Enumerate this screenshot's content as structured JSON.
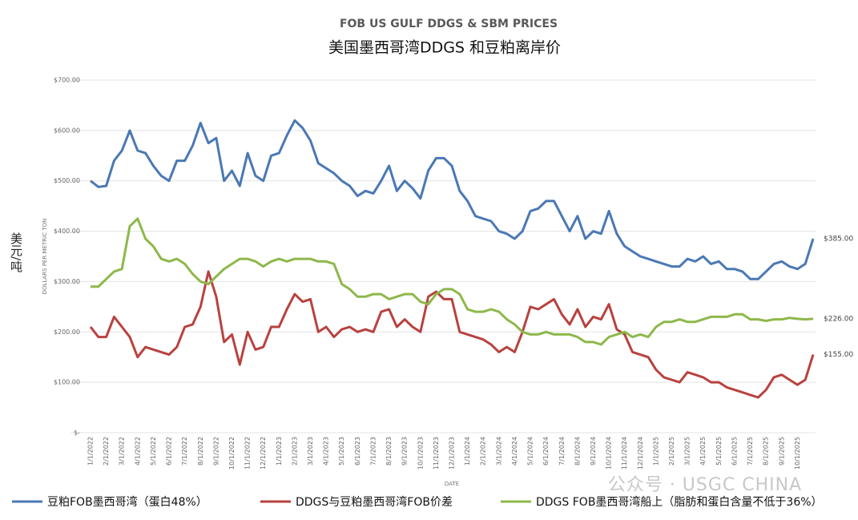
{
  "chart_data": {
    "type": "line",
    "title": "FOB US GULF DDGS & SBM PRICES",
    "subtitle": "美国墨西哥湾DDGS 和豆粕离岸价",
    "y_label": "DOLLARS PER METRIC TON",
    "x_label": "DATE",
    "unit_label": "美元/吨",
    "watermark": "公众号 · USGC CHINA",
    "grid": true,
    "ylim": [
      0,
      700
    ],
    "yticks": [
      {
        "value": 0,
        "label": "$-"
      },
      {
        "value": 100,
        "label": "$100.00"
      },
      {
        "value": 200,
        "label": "$200.00"
      },
      {
        "value": 300,
        "label": "$300.00"
      },
      {
        "value": 400,
        "label": "$400.00"
      },
      {
        "value": 500,
        "label": "$500.00"
      },
      {
        "value": 600,
        "label": "$600.00"
      },
      {
        "value": 700,
        "label": "$700.00"
      }
    ],
    "categories": [
      "1/1/2022",
      null,
      "2/1/2022",
      null,
      "3/1/2022",
      null,
      "4/1/2022",
      null,
      "5/1/2022",
      null,
      "6/1/2022",
      null,
      "7/1/2022",
      null,
      "8/1/2022",
      null,
      "9/1/2022",
      null,
      "10/1/2022",
      null,
      "11/1/2022",
      null,
      "12/1/2022",
      null,
      "1/1/2023",
      null,
      "2/1/2023",
      null,
      "3/1/2023",
      null,
      "4/1/2023",
      null,
      "5/1/2023",
      null,
      "6/1/2023",
      null,
      "7/1/2023",
      null,
      "8/1/2023",
      null,
      "9/1/2023",
      null,
      "10/1/2023",
      null,
      "11/1/2023",
      null,
      "12/1/2023",
      null,
      "1/1/2024",
      null,
      "2/1/2024",
      null,
      "3/1/2024",
      null,
      "4/1/2024",
      null,
      "5/1/2024",
      null,
      "6/1/2024",
      null,
      "7/1/2024",
      null,
      "8/1/2024",
      null,
      "9/1/2024",
      null,
      "10/1/2024",
      null,
      "11/1/2024",
      null,
      "12/1/2024",
      null,
      "1/1/2025",
      null,
      "2/1/2025",
      null,
      "3/1/2025",
      null,
      "4/1/2025",
      null,
      "5/1/2025",
      null,
      "6/1/2025",
      null,
      "7/1/2025",
      null,
      "8/1/2025",
      null,
      "9/1/2025",
      null,
      "10/1/2025",
      null,
      null
    ],
    "series": [
      {
        "name": "豆粕FOB墨西哥湾（蛋白48%）",
        "color": "#4a78b4",
        "values": [
          500,
          488,
          490,
          540,
          560,
          600,
          560,
          555,
          530,
          510,
          500,
          540,
          540,
          570,
          615,
          575,
          585,
          500,
          520,
          490,
          555,
          510,
          500,
          550,
          555,
          590,
          620,
          605,
          580,
          535,
          525,
          515,
          500,
          490,
          470,
          480,
          475,
          500,
          530,
          480,
          500,
          485,
          465,
          520,
          545,
          545,
          530,
          480,
          460,
          430,
          425,
          420,
          400,
          395,
          385,
          400,
          440,
          445,
          460,
          460,
          430,
          400,
          430,
          385,
          400,
          395,
          440,
          395,
          370,
          360,
          350,
          345,
          340,
          335,
          330,
          330,
          345,
          340,
          350,
          335,
          340,
          325,
          325,
          320,
          305,
          305,
          320,
          335,
          340,
          330,
          325,
          335,
          385
        ],
        "value_labels": [
          null,
          null,
          null,
          null,
          null,
          null,
          null,
          null,
          null,
          null,
          null,
          null,
          null,
          null,
          null,
          null,
          null,
          null,
          null,
          null,
          null,
          null,
          null,
          null,
          null,
          null,
          null,
          null,
          null,
          null,
          null,
          null,
          null,
          null,
          null,
          null,
          null,
          null,
          null,
          null,
          null,
          null,
          null,
          null,
          null,
          null,
          null,
          null,
          null,
          null,
          null,
          null,
          null,
          null,
          null,
          null,
          null,
          null,
          null,
          null,
          null,
          null,
          null,
          null,
          null,
          null,
          null,
          null,
          null,
          null,
          null,
          null,
          null,
          null,
          null,
          null,
          null,
          null,
          null,
          null,
          null,
          null,
          null,
          null,
          null,
          null,
          null,
          null,
          null,
          null,
          null,
          null,
          "$385.00"
        ]
      },
      {
        "name": "DDGS与豆粕墨西哥湾FOB价差",
        "color": "#b8423f",
        "values": [
          210,
          190,
          190,
          230,
          210,
          190,
          150,
          170,
          165,
          160,
          155,
          170,
          210,
          215,
          250,
          320,
          270,
          180,
          195,
          135,
          200,
          165,
          170,
          210,
          210,
          245,
          275,
          260,
          265,
          200,
          210,
          190,
          205,
          210,
          200,
          205,
          200,
          240,
          245,
          210,
          225,
          210,
          200,
          270,
          280,
          265,
          265,
          200,
          195,
          190,
          185,
          175,
          160,
          170,
          160,
          200,
          250,
          245,
          255,
          265,
          235,
          215,
          245,
          210,
          230,
          225,
          255,
          205,
          195,
          160,
          155,
          150,
          125,
          110,
          105,
          100,
          120,
          115,
          110,
          100,
          100,
          90,
          85,
          80,
          75,
          70,
          85,
          110,
          115,
          105,
          95,
          105,
          155
        ],
        "value_labels": [
          null,
          null,
          null,
          null,
          null,
          null,
          null,
          null,
          null,
          null,
          null,
          null,
          null,
          null,
          null,
          null,
          null,
          null,
          null,
          null,
          null,
          null,
          null,
          null,
          null,
          null,
          null,
          null,
          null,
          null,
          null,
          null,
          null,
          null,
          null,
          null,
          null,
          null,
          null,
          null,
          null,
          null,
          null,
          null,
          null,
          null,
          null,
          null,
          null,
          null,
          null,
          null,
          null,
          null,
          null,
          null,
          null,
          null,
          null,
          null,
          null,
          null,
          null,
          null,
          null,
          null,
          null,
          null,
          null,
          null,
          null,
          null,
          null,
          null,
          null,
          null,
          null,
          null,
          null,
          null,
          null,
          null,
          null,
          null,
          null,
          null,
          null,
          null,
          null,
          null,
          null,
          null,
          "$155.00"
        ]
      },
      {
        "name": "DDGS FOB墨西哥湾船上（脂肪和蛋白含量不低于36%）",
        "color": "#8db84a",
        "values": [
          290,
          290,
          305,
          320,
          325,
          410,
          425,
          385,
          370,
          345,
          340,
          345,
          335,
          315,
          300,
          295,
          310,
          325,
          335,
          345,
          345,
          340,
          330,
          340,
          345,
          340,
          345,
          345,
          345,
          340,
          340,
          335,
          295,
          285,
          270,
          270,
          275,
          275,
          265,
          270,
          275,
          275,
          260,
          255,
          275,
          285,
          285,
          275,
          245,
          240,
          240,
          245,
          240,
          225,
          215,
          200,
          195,
          195,
          200,
          195,
          195,
          195,
          190,
          180,
          180,
          175,
          190,
          195,
          200,
          190,
          195,
          190,
          210,
          220,
          220,
          225,
          220,
          220,
          225,
          230,
          230,
          230,
          235,
          235,
          225,
          225,
          222,
          225,
          225,
          228,
          226,
          225,
          226
        ],
        "value_labels": [
          null,
          null,
          null,
          null,
          null,
          null,
          null,
          null,
          null,
          null,
          null,
          null,
          null,
          null,
          null,
          null,
          null,
          null,
          null,
          null,
          null,
          null,
          null,
          null,
          null,
          null,
          null,
          null,
          null,
          null,
          null,
          null,
          null,
          null,
          null,
          null,
          null,
          null,
          null,
          null,
          null,
          null,
          null,
          null,
          null,
          null,
          null,
          null,
          null,
          null,
          null,
          null,
          null,
          null,
          null,
          null,
          null,
          null,
          null,
          null,
          null,
          null,
          null,
          null,
          null,
          null,
          null,
          null,
          null,
          null,
          null,
          null,
          null,
          null,
          null,
          null,
          null,
          null,
          null,
          null,
          null,
          null,
          null,
          null,
          null,
          null,
          null,
          null,
          null,
          null,
          null,
          null,
          "$226.00"
        ]
      }
    ]
  }
}
